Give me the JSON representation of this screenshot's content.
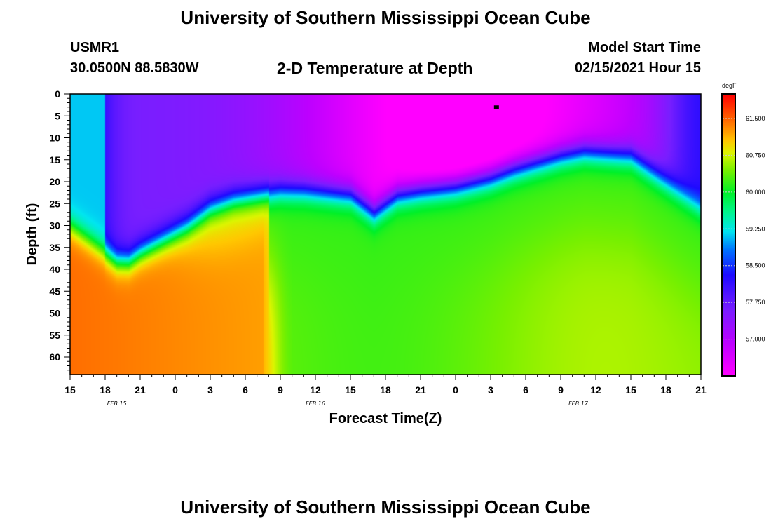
{
  "header": {
    "title": "University of Southern Mississippi Ocean Cube",
    "station": "USMR1",
    "coords": "30.0500N 88.5830W",
    "plot_title": "2-D Temperature at Depth",
    "start_label": "Model Start Time",
    "start_time": "02/15/2021 Hour 15"
  },
  "footer": {
    "title": "University of Southern Mississippi Ocean Cube"
  },
  "chart_data": {
    "type": "heatmap",
    "title": "2-D Temperature at Depth",
    "xlabel": "Forecast Time(Z)",
    "ylabel": "Depth (ft)",
    "x_ticks": [
      "15",
      "18",
      "21",
      "0",
      "3",
      "6",
      "9",
      "12",
      "15",
      "18",
      "21",
      "0",
      "3",
      "6",
      "9",
      "12",
      "15",
      "18",
      "21"
    ],
    "x_range_hours": [
      0,
      54
    ],
    "y_ticks": [
      0,
      5,
      10,
      15,
      20,
      25,
      30,
      35,
      40,
      45,
      50,
      55,
      60
    ],
    "y_range": [
      0,
      64
    ],
    "date_labels": [
      {
        "text": "FEB 15",
        "hour": 4
      },
      {
        "text": "FEB 16",
        "hour": 21
      },
      {
        "text": "FEB 17",
        "hour": 43.5
      }
    ],
    "colorbar": {
      "units": "degF",
      "range": [
        56.25,
        62.0
      ],
      "ticks": [
        "61.500",
        "60.750",
        "60.000",
        "59.250",
        "58.500",
        "57.750",
        "57.000"
      ],
      "tick_values": [
        61.5,
        60.75,
        60.0,
        59.25,
        58.5,
        57.75,
        57.0
      ]
    },
    "thermocline": {
      "hours": [
        0,
        3,
        4,
        5,
        6,
        10,
        12,
        14,
        18,
        20,
        24,
        26,
        28,
        30,
        33,
        36,
        38,
        42,
        44,
        48,
        50,
        54
      ],
      "depths": [
        30,
        36,
        38,
        38,
        36,
        30,
        26,
        24,
        22,
        22,
        23,
        27,
        23,
        22,
        21,
        19,
        17,
        14,
        13,
        14,
        18,
        26
      ]
    },
    "marker": {
      "hour": 36.5,
      "depth": 3
    }
  }
}
